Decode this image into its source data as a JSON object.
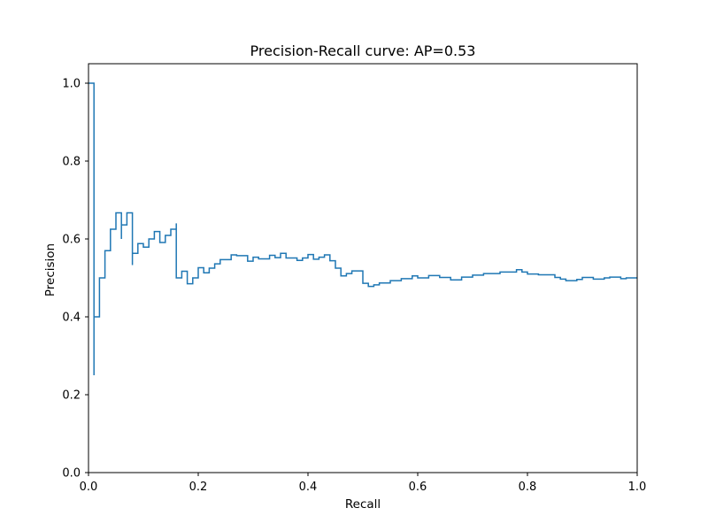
{
  "chart_data": {
    "type": "line",
    "title": "Precision-Recall curve: AP=0.53",
    "xlabel": "Recall",
    "ylabel": "Precision",
    "xlim": [
      0.0,
      1.0
    ],
    "ylim": [
      0.0,
      1.05
    ],
    "grid": false,
    "legend": "none",
    "drawstyle": "steps-post",
    "line_color": "#1f77b4",
    "x_ticks": [
      0.0,
      0.2,
      0.4,
      0.6,
      0.8,
      1.0
    ],
    "x_tick_labels": [
      "0.0",
      "0.2",
      "0.4",
      "0.6",
      "0.8",
      "1.0"
    ],
    "y_ticks": [
      0.0,
      0.2,
      0.4,
      0.6,
      0.8,
      1.0
    ],
    "y_tick_labels": [
      "0.0",
      "0.2",
      "0.4",
      "0.6",
      "0.8",
      "1.0"
    ],
    "series": [
      {
        "x": [
          0.0,
          0.01,
          0.01,
          0.02,
          0.03,
          0.04,
          0.05,
          0.06,
          0.06,
          0.07,
          0.08,
          0.08,
          0.09,
          0.1,
          0.11,
          0.12,
          0.13,
          0.14,
          0.15,
          0.16,
          0.16,
          0.17,
          0.18,
          0.18,
          0.19,
          0.2,
          0.21,
          0.22,
          0.23,
          0.24,
          0.26,
          0.27,
          0.29,
          0.3,
          0.31,
          0.33,
          0.34,
          0.35,
          0.36,
          0.38,
          0.39,
          0.4,
          0.41,
          0.42,
          0.43,
          0.44,
          0.45,
          0.46,
          0.47,
          0.48,
          0.5,
          0.51,
          0.52,
          0.53,
          0.55,
          0.57,
          0.59,
          0.6,
          0.62,
          0.64,
          0.66,
          0.68,
          0.7,
          0.72,
          0.75,
          0.78,
          0.79,
          0.8,
          0.82,
          0.85,
          0.86,
          0.87,
          0.89,
          0.9,
          0.92,
          0.94,
          0.95,
          0.97,
          0.98,
          1.0
        ],
        "y": [
          1.0,
          0.25,
          0.4,
          0.5,
          0.57,
          0.625,
          0.667,
          0.6,
          0.636,
          0.667,
          0.533,
          0.563,
          0.588,
          0.579,
          0.6,
          0.619,
          0.591,
          0.609,
          0.625,
          0.64,
          0.5,
          0.517,
          0.516,
          0.485,
          0.5,
          0.526,
          0.513,
          0.525,
          0.536,
          0.547,
          0.559,
          0.557,
          0.543,
          0.553,
          0.549,
          0.558,
          0.552,
          0.563,
          0.551,
          0.545,
          0.551,
          0.56,
          0.548,
          0.553,
          0.559,
          0.544,
          0.525,
          0.505,
          0.511,
          0.518,
          0.486,
          0.478,
          0.482,
          0.487,
          0.493,
          0.498,
          0.505,
          0.5,
          0.506,
          0.501,
          0.495,
          0.502,
          0.507,
          0.511,
          0.515,
          0.521,
          0.515,
          0.51,
          0.508,
          0.501,
          0.497,
          0.493,
          0.496,
          0.501,
          0.497,
          0.5,
          0.502,
          0.498,
          0.5,
          0.5
        ]
      }
    ]
  }
}
